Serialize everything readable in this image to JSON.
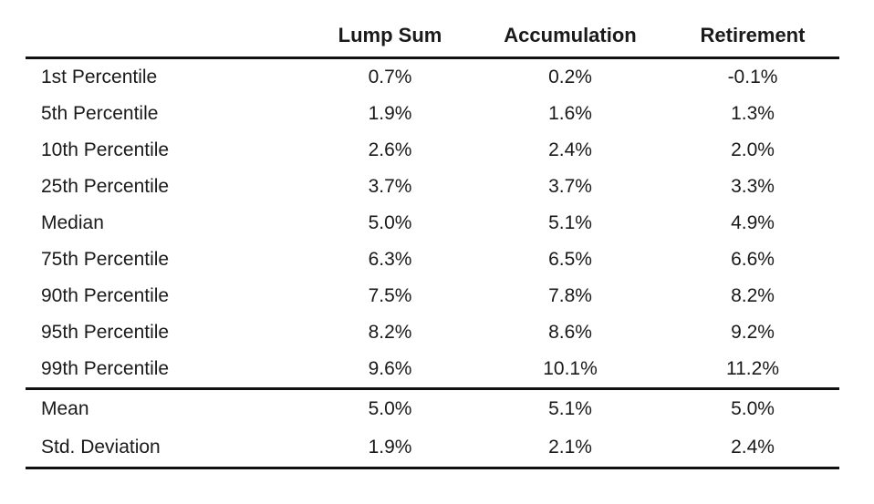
{
  "colors": {
    "background": "#ffffff",
    "text": "#1a1a1a",
    "rule": "#111111"
  },
  "chart_data": {
    "type": "table",
    "title": "",
    "corner_label": "",
    "columns": [
      "Lump Sum",
      "Accumulation",
      "Retirement"
    ],
    "rows": [
      {
        "label": "1st Percentile",
        "values": [
          "0.7%",
          "0.2%",
          "-0.1%"
        ]
      },
      {
        "label": "5th Percentile",
        "values": [
          "1.9%",
          "1.6%",
          "1.3%"
        ]
      },
      {
        "label": "10th Percentile",
        "values": [
          "2.6%",
          "2.4%",
          "2.0%"
        ]
      },
      {
        "label": "25th Percentile",
        "values": [
          "3.7%",
          "3.7%",
          "3.3%"
        ]
      },
      {
        "label": "Median",
        "values": [
          "5.0%",
          "5.1%",
          "4.9%"
        ]
      },
      {
        "label": "75th Percentile",
        "values": [
          "6.3%",
          "6.5%",
          "6.6%"
        ]
      },
      {
        "label": "90th Percentile",
        "values": [
          "7.5%",
          "7.8%",
          "8.2%"
        ]
      },
      {
        "label": "95th Percentile",
        "values": [
          "8.2%",
          "8.6%",
          "9.2%"
        ]
      },
      {
        "label": "99th Percentile",
        "values": [
          "9.6%",
          "10.1%",
          "11.2%"
        ]
      }
    ],
    "summary_rows": [
      {
        "label": "Mean",
        "values": [
          "5.0%",
          "5.1%",
          "5.0%"
        ]
      },
      {
        "label": "Std. Deviation",
        "values": [
          "1.9%",
          "2.1%",
          "2.4%"
        ]
      }
    ],
    "layout": {
      "grid": false,
      "rules": [
        "below-header",
        "above-summary",
        "bottom"
      ]
    }
  }
}
